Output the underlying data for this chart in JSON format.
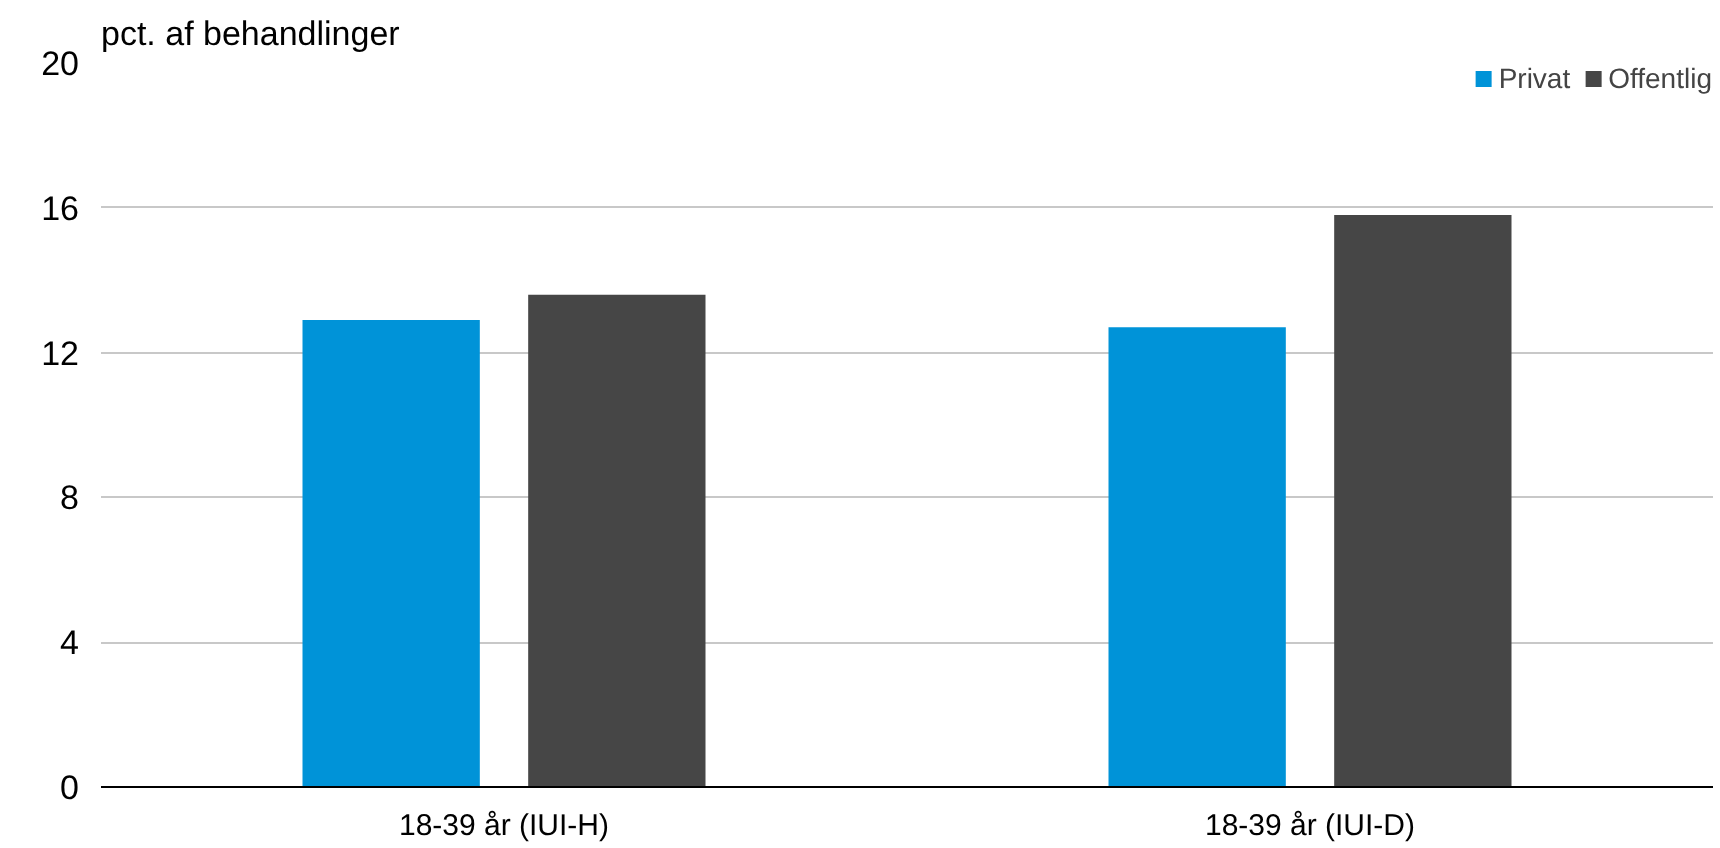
{
  "chart_data": {
    "type": "bar",
    "ylabel": "pct. af behandlinger",
    "categories": [
      "18-39 år (IUI-H)",
      "18-39 år (IUI-D)"
    ],
    "series": [
      {
        "name": "Privat",
        "color": "#0093d8",
        "values": [
          12.9,
          12.7
        ]
      },
      {
        "name": "Offentlig",
        "color": "#464646",
        "values": [
          13.6,
          15.8
        ]
      }
    ],
    "ylim": [
      0,
      20
    ],
    "yticks": [
      0,
      4,
      8,
      12,
      16,
      20
    ],
    "grid": "y",
    "legend": "top right"
  }
}
